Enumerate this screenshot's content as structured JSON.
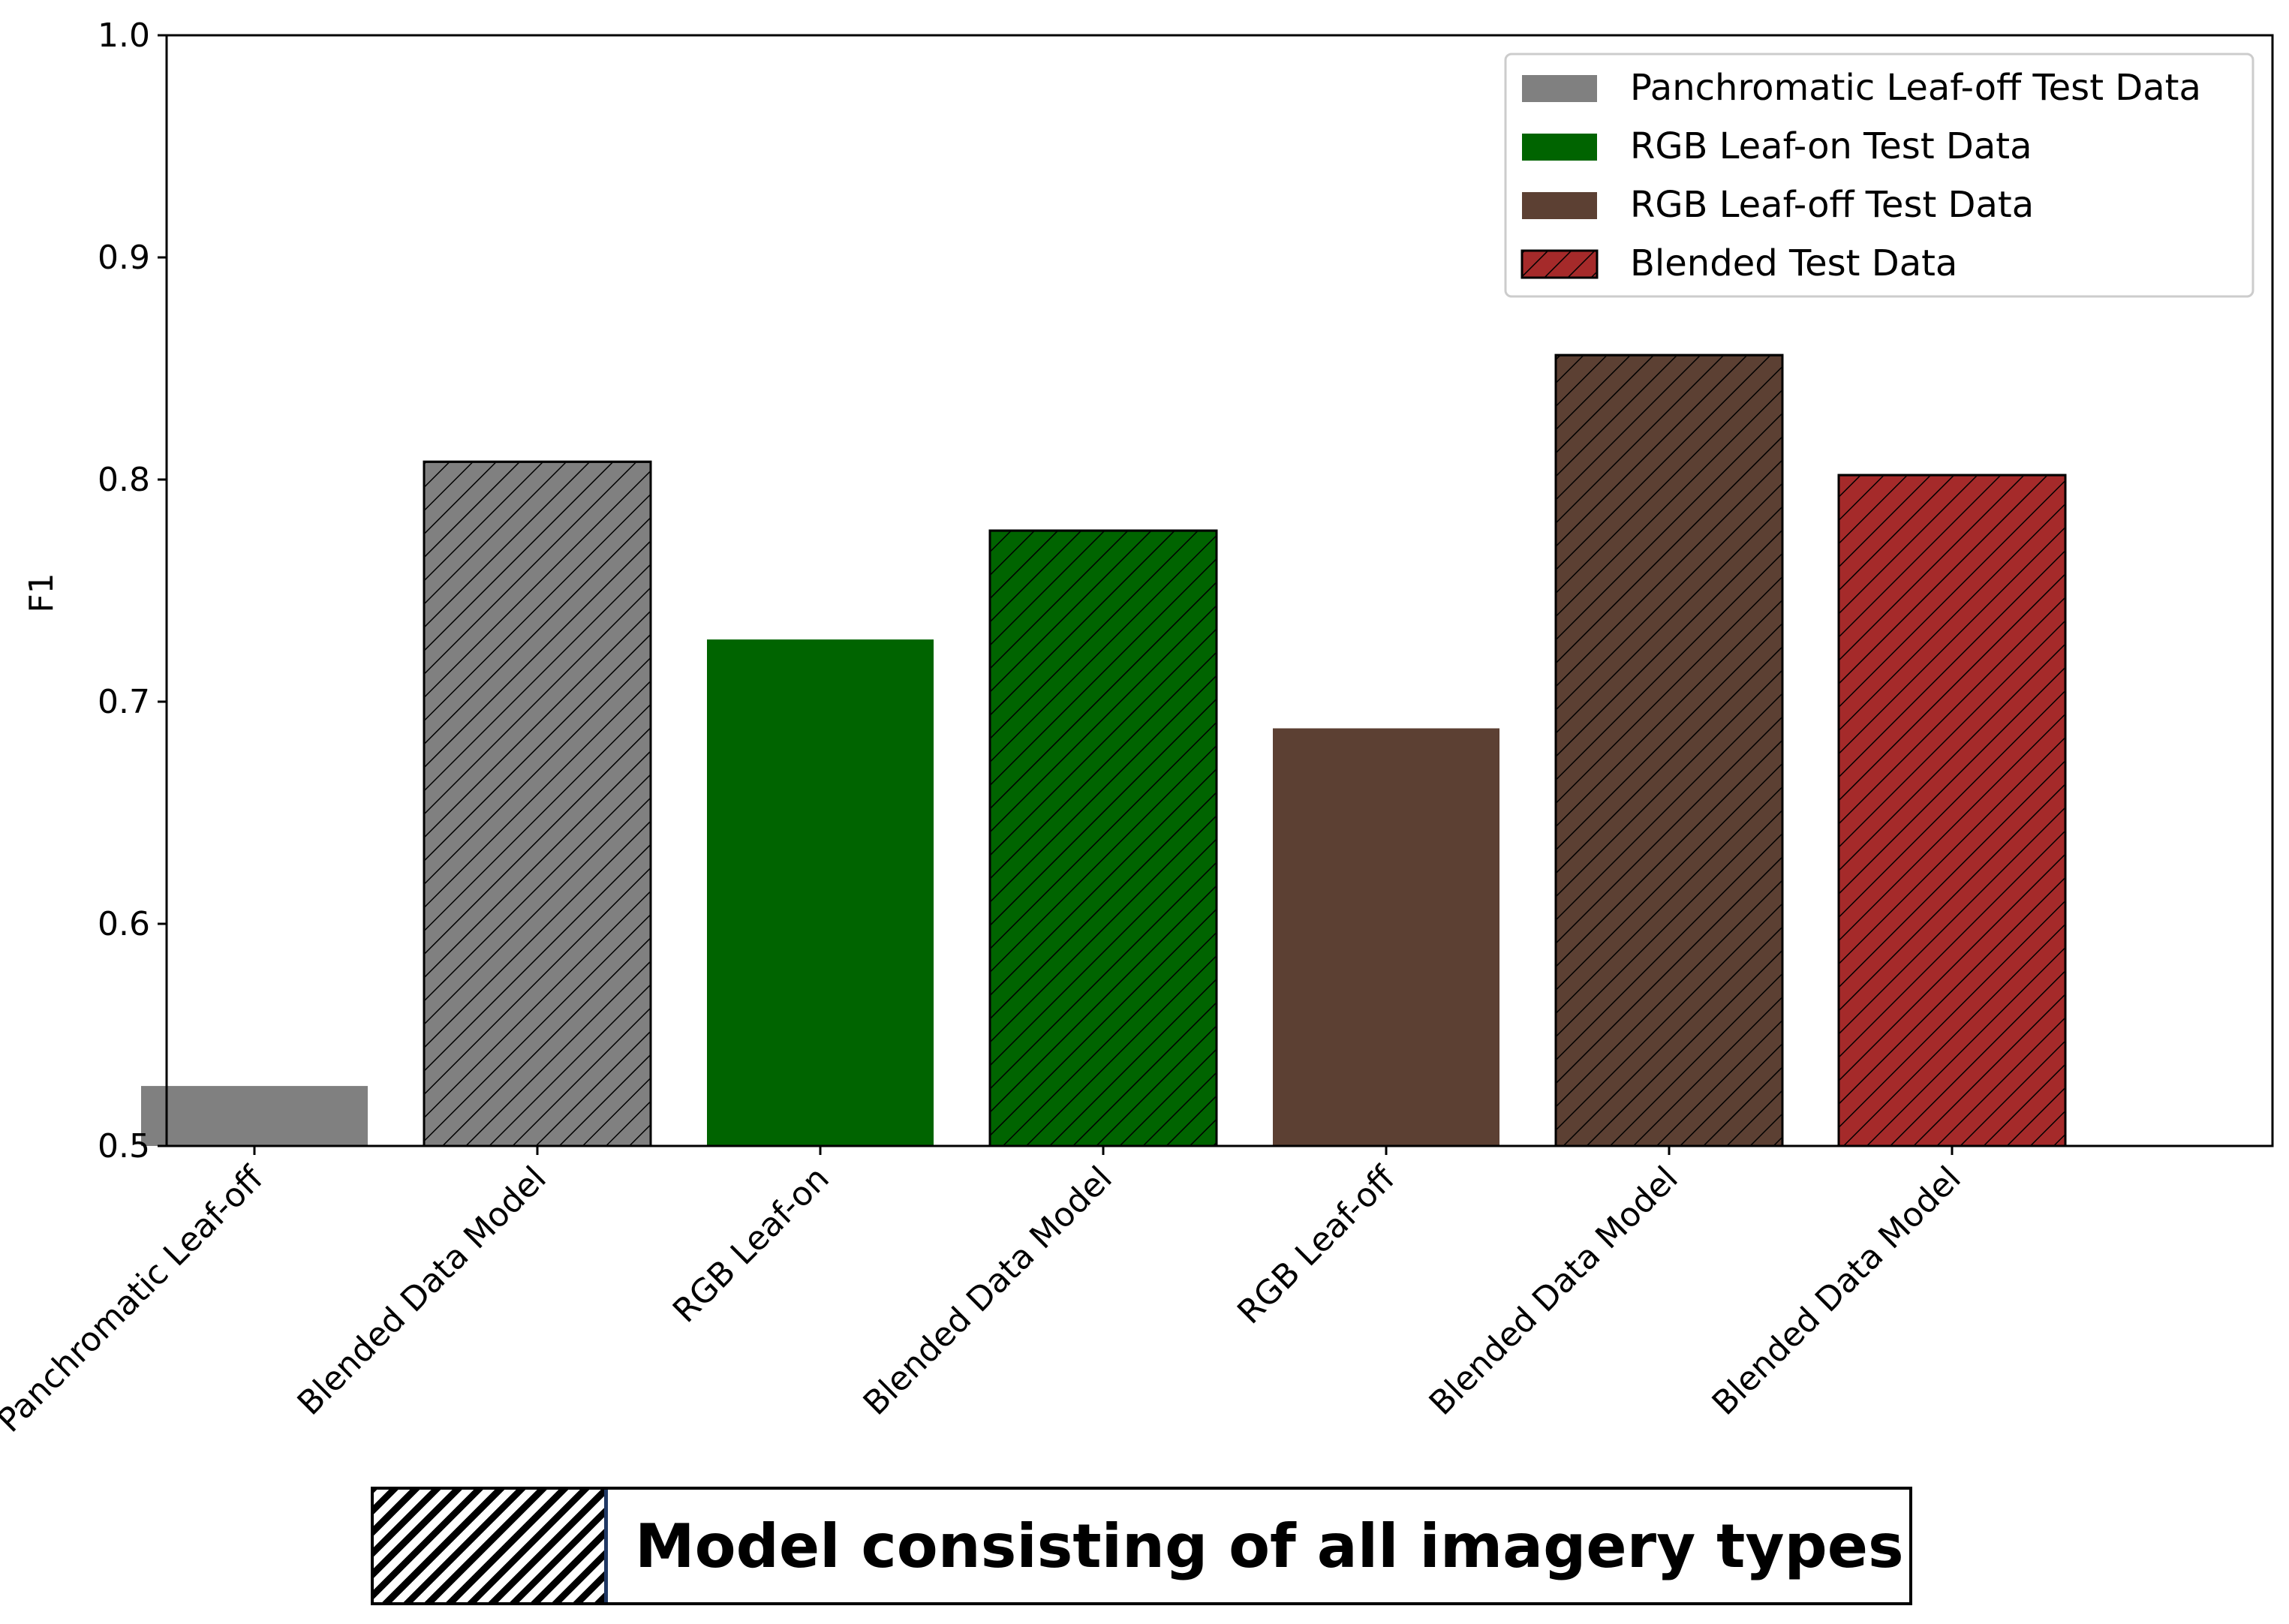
{
  "chart_data": {
    "type": "bar",
    "title": "",
    "xlabel": "",
    "ylabel": "F1",
    "ylim": [
      0.5,
      1.0
    ],
    "yticks": [
      0.5,
      0.6,
      0.7,
      0.8,
      0.9,
      1.0
    ],
    "grid": false,
    "legend_position": "top-right",
    "categories": [
      "Panchromatic Leaf-off",
      "Blended Data Model",
      "RGB Leaf-on",
      "Blended Data Model",
      "RGB Leaf-off",
      "Blended Data Model",
      "Blended Data Model"
    ],
    "values": [
      0.527,
      0.808,
      0.728,
      0.777,
      0.688,
      0.856,
      0.802
    ],
    "bar_colors": [
      "#808080",
      "#808080",
      "#006400",
      "#006400",
      "#5c4033",
      "#5c4033",
      "#a52a2a"
    ],
    "bar_hatched": [
      false,
      true,
      false,
      true,
      false,
      true,
      true
    ],
    "legend": [
      {
        "label": "Panchromatic Leaf-off Test Data",
        "color": "#808080",
        "hatched": false
      },
      {
        "label": "RGB Leaf-on Test Data",
        "color": "#006400",
        "hatched": false
      },
      {
        "label": "RGB Leaf-off Test Data",
        "color": "#5c4033",
        "hatched": false
      },
      {
        "label": "Blended Test Data",
        "color": "#a52a2a",
        "hatched": true
      }
    ]
  },
  "note": {
    "text": "Model consisting of all imagery types"
  }
}
